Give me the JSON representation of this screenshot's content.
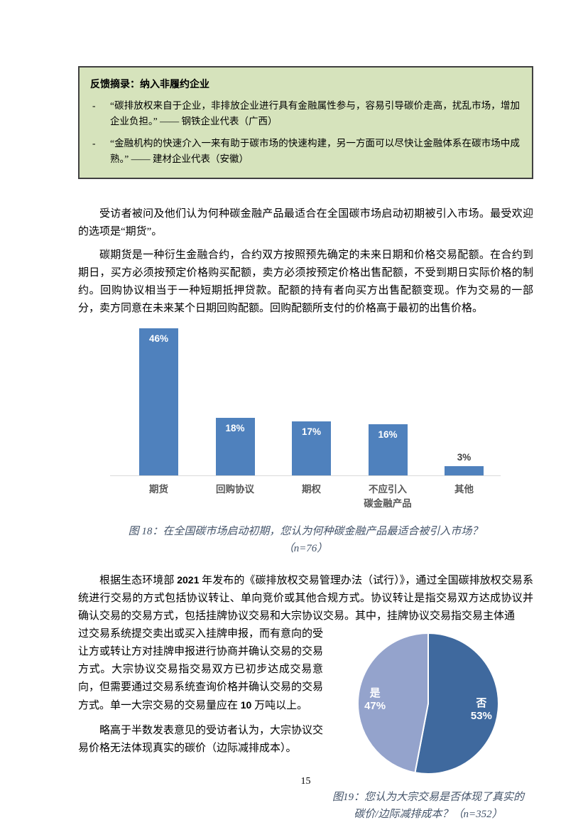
{
  "page": {
    "number": "15"
  },
  "feedback_box": {
    "title": "反馈摘录：纳入非履约企业",
    "bullets": [
      {
        "dash": "-",
        "text": "“碳排放权来自于企业，非排放企业进行具有金融属性参与，容易引导碳价走高，扰乱市场，增加企业负担。” —— 钢铁企业代表（广西）"
      },
      {
        "dash": "-",
        "text": "“金融机构的快速介入一来有助于碳市场的快速构建，另一方面可以尽快让金融体系在碳市场中成熟。” —— 建材企业代表（安徽）"
      }
    ]
  },
  "paragraphs": {
    "p1": "受访者被问及他们认为何种碳金融产品最适合在全国碳市场启动初期被引入市场。最受欢迎的选项是“期货”。",
    "p2": "碳期货是一种衍生金融合约，合约双方按照预先确定的未来日期和价格交易配额。在合约到期日，买方必须按预定价格购买配额，卖方必须按预定价格出售配额，不受到期日实际价格的制约。回购协议相当于一种短期抵押贷款。配额的持有者向买方出售配额变现。作为交易的一部分，卖方同意在未来某个日期回购配额。回购配额所支付的价格高于最初的出售价格。",
    "p3_part1": "根据生态环境部 2021 年发布的《碳排放权交易管理办法（试行）》，通过全国碳排放权交易系统进行交易的方式包括协议转让、单向竞价或其他合规方式。协议转让是指交易双方达成协议并确认交易的交易方式，包括挂牌协议交易和大宗协议交易。其中，挂牌协议交易指交易主体通",
    "p3_part2": "过交易系统提交卖出或买入挂牌申报，而有意向的受让方或转让方对挂牌申报进行协商并确认交易的交易方式。大宗协议交易指交易双方已初步达成交易意向，但需要通过交易系统查询价格并确认交易的交易方式。单一大宗交易的交易量应在 10 万吨以上。",
    "p4": "略高于半数发表意见的受访者认为，大宗协议交易价格无法体现真实的碳价（边际减排成本）。"
  },
  "chart_data": [
    {
      "id": "figure18",
      "type": "bar",
      "categories": [
        "期货",
        "回购协议",
        "期权",
        "不应引入\n碳金融产品",
        "其他"
      ],
      "values": [
        46,
        18,
        17,
        16,
        3
      ],
      "data_labels": [
        "46%",
        "18%",
        "17%",
        "16%",
        "3%"
      ],
      "bar_color": "#4F81BD",
      "label_color_inside": "#FFFFFF",
      "label_color_outside": "#404040",
      "axis_color": "#D9D9D9",
      "ylim": [
        0,
        50
      ],
      "grid": false,
      "legend": "none",
      "caption": "图 18：在全国碳市场启动初期，您认为何种碳金融产品最适合被引入市场？（n=76）"
    },
    {
      "id": "figure19",
      "type": "pie",
      "labels": [
        "否",
        "是"
      ],
      "values": [
        53,
        47
      ],
      "data_labels": [
        "53%",
        "47%"
      ],
      "colors": [
        "#3F699E",
        "#94A3CC"
      ],
      "start_angle_deg": 0,
      "direction": "clockwise",
      "caption_line1": "图19：您认为大宗交易是否体现了真实的",
      "caption_line2": "碳价/边际减排成本？（n=352）"
    }
  ]
}
